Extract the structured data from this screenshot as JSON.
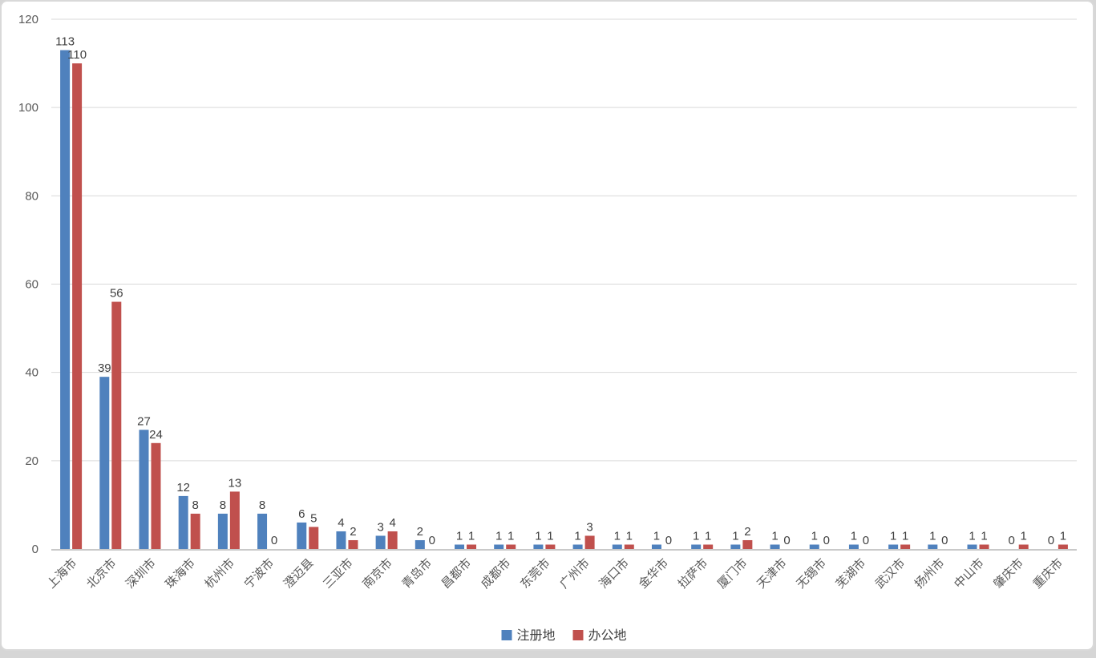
{
  "chart_data": {
    "type": "bar",
    "title": "",
    "xlabel": "",
    "ylabel": "",
    "categories": [
      "上海市",
      "北京市",
      "深圳市",
      "珠海市",
      "杭州市",
      "宁波市",
      "澄迈县",
      "三亚市",
      "南京市",
      "青岛市",
      "昌都市",
      "成都市",
      "东莞市",
      "广州市",
      "海口市",
      "金华市",
      "拉萨市",
      "厦门市",
      "天津市",
      "无锡市",
      "芜湖市",
      "武汉市",
      "扬州市",
      "中山市",
      "肇庆市",
      "重庆市"
    ],
    "series": [
      {
        "name": "注册地",
        "color": "#4F81BD",
        "values": [
          113,
          39,
          27,
          12,
          8,
          8,
          6,
          4,
          3,
          2,
          1,
          1,
          1,
          1,
          1,
          1,
          1,
          1,
          1,
          1,
          1,
          1,
          1,
          1,
          0,
          0
        ]
      },
      {
        "name": "办公地",
        "color": "#C0504D",
        "values": [
          110,
          56,
          24,
          8,
          13,
          0,
          5,
          2,
          4,
          0,
          1,
          1,
          1,
          3,
          1,
          0,
          1,
          2,
          0,
          0,
          0,
          1,
          0,
          1,
          1,
          1
        ]
      }
    ],
    "ylim": [
      0,
      120
    ],
    "yticks": [
      0,
      20,
      40,
      60,
      80,
      100,
      120
    ],
    "grid": true,
    "show_value_labels": true,
    "legend_position": "bottom"
  },
  "style": {
    "gridline_color": "#d9d9d9",
    "axis_line_color": "#c9c9c9",
    "tick_label_color": "#595959",
    "category_label_color": "#595959",
    "value_label_color": "#404040",
    "legend_label_color": "#404040",
    "background": "#ffffff"
  }
}
